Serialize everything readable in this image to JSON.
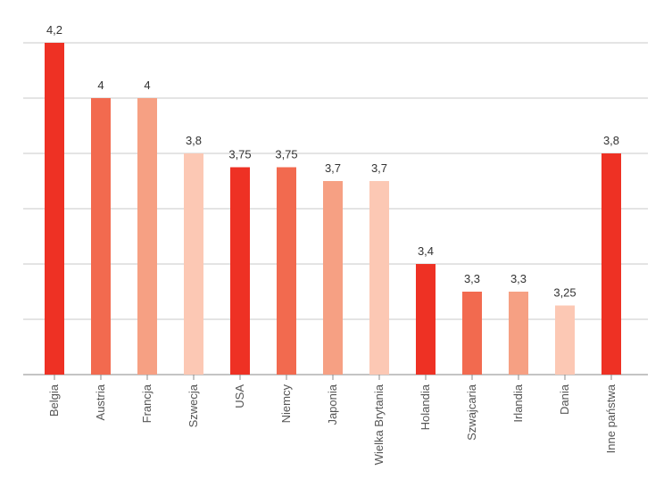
{
  "chart_data": {
    "type": "bar",
    "categories": [
      "Belgia",
      "Austria",
      "Francja",
      "Szwecja",
      "USA",
      "Niemcy",
      "Japonia",
      "Wielka Brytania",
      "Holandia",
      "Szwajcaria",
      "Irlandia",
      "Dania",
      "Inne państwa"
    ],
    "values": [
      4.2,
      4,
      4,
      3.8,
      3.75,
      3.75,
      3.7,
      3.7,
      3.4,
      3.3,
      3.3,
      3.25,
      3.8
    ],
    "value_labels": [
      "4,2",
      "4",
      "4",
      "3,8",
      "3,75",
      "3,75",
      "3,7",
      "3,7",
      "3,4",
      "3,3",
      "3,3",
      "3,25",
      "3,8"
    ],
    "bar_colors": [
      "#ee3124",
      "#f26a4f",
      "#f6a083",
      "#fcc8b4",
      "#ee3124",
      "#f26a4f",
      "#f6a083",
      "#fcc8b4",
      "#ee3124",
      "#f26a4f",
      "#f6a083",
      "#fcc8b4",
      "#ee3124"
    ],
    "title": "",
    "xlabel": "",
    "ylabel": "",
    "ylim": [
      3.0,
      4.2
    ],
    "grid": true,
    "gridline_count": 7,
    "legend": "none"
  }
}
